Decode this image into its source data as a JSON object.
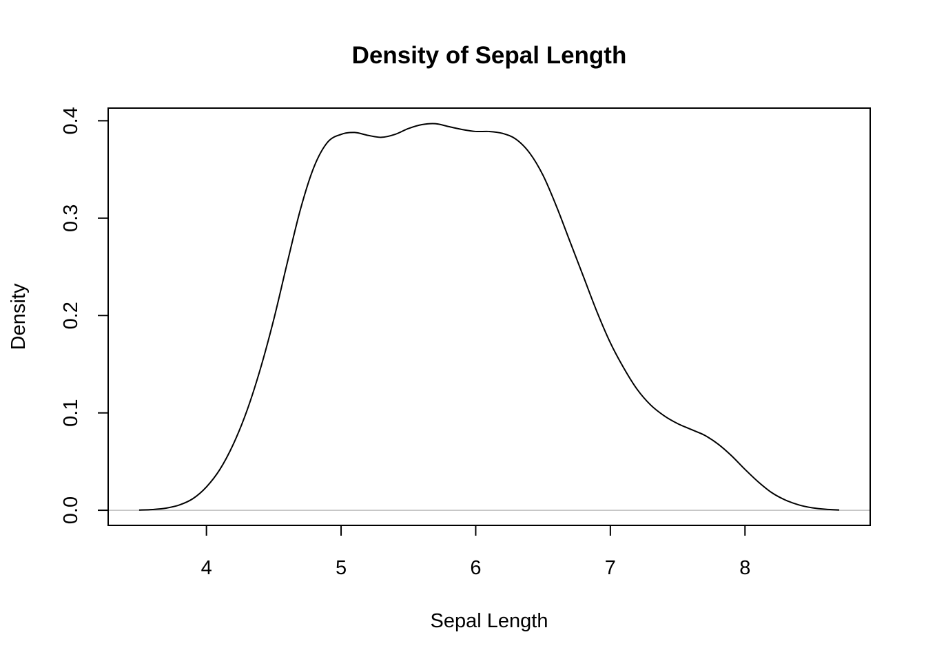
{
  "chart_data": {
    "type": "line",
    "title": "Density of Sepal Length",
    "xlabel": "Sepal Length",
    "ylabel": "Density",
    "xlim": [
      3.27,
      8.93
    ],
    "ylim": [
      -0.0155,
      0.413
    ],
    "x_ticks": [
      {
        "value": 4,
        "label": "4"
      },
      {
        "value": 5,
        "label": "5"
      },
      {
        "value": 6,
        "label": "6"
      },
      {
        "value": 7,
        "label": "7"
      },
      {
        "value": 8,
        "label": "8"
      }
    ],
    "y_ticks": [
      {
        "value": 0.0,
        "label": "0.0"
      },
      {
        "value": 0.1,
        "label": "0.1"
      },
      {
        "value": 0.2,
        "label": "0.2"
      },
      {
        "value": 0.3,
        "label": "0.3"
      },
      {
        "value": 0.4,
        "label": "0.4"
      }
    ],
    "grid": false,
    "zero_line": {
      "y": 0,
      "color": "#bebebe"
    },
    "series": [
      {
        "color": "#000000",
        "x": [
          3.5,
          3.6,
          3.7,
          3.8,
          3.9,
          4.0,
          4.1,
          4.2,
          4.3,
          4.4,
          4.5,
          4.6,
          4.7,
          4.8,
          4.9,
          5.0,
          5.1,
          5.2,
          5.3,
          5.4,
          5.5,
          5.6,
          5.7,
          5.8,
          5.9,
          6.0,
          6.1,
          6.2,
          6.3,
          6.4,
          6.5,
          6.6,
          6.7,
          6.8,
          6.9,
          7.0,
          7.1,
          7.2,
          7.3,
          7.4,
          7.5,
          7.6,
          7.7,
          7.8,
          7.9,
          8.0,
          8.1,
          8.2,
          8.3,
          8.4,
          8.5,
          8.6,
          8.7
        ],
        "y": [
          0.0002,
          0.0008,
          0.0022,
          0.0055,
          0.012,
          0.024,
          0.042,
          0.068,
          0.102,
          0.145,
          0.196,
          0.254,
          0.31,
          0.353,
          0.378,
          0.386,
          0.388,
          0.385,
          0.383,
          0.386,
          0.392,
          0.396,
          0.397,
          0.394,
          0.391,
          0.389,
          0.389,
          0.387,
          0.381,
          0.367,
          0.344,
          0.312,
          0.276,
          0.24,
          0.204,
          0.172,
          0.146,
          0.124,
          0.108,
          0.097,
          0.089,
          0.083,
          0.077,
          0.068,
          0.056,
          0.042,
          0.029,
          0.018,
          0.0105,
          0.0055,
          0.0025,
          0.001,
          0.0003
        ]
      }
    ]
  }
}
